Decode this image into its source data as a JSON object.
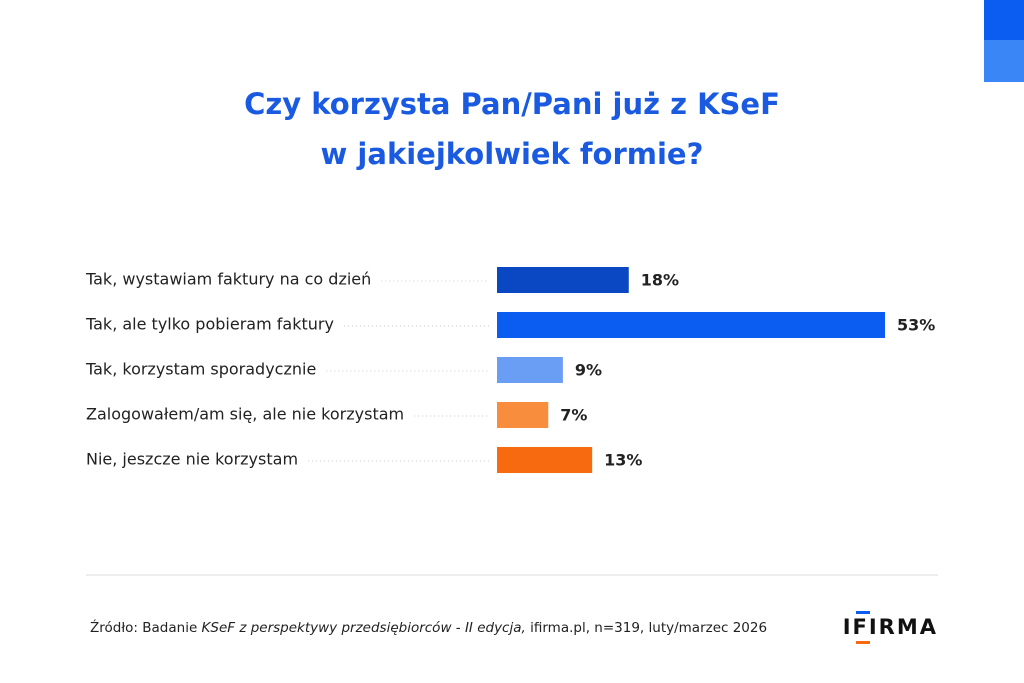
{
  "chart_data": {
    "type": "bar",
    "orientation": "horizontal",
    "title": [
      "Czy korzysta Pan/Pani już z KSeF",
      "w jakiejkolwiek formie?"
    ],
    "categories": [
      "Tak, wystawiam faktury na co dzień",
      "Tak, ale tylko pobieram faktury",
      "Tak, korzystam sporadycznie",
      "Zalogowałem/am się, ale nie korzystam",
      "Nie, jeszcze nie korzystam"
    ],
    "values": [
      18,
      53,
      9,
      7,
      13
    ],
    "value_labels": [
      "18%",
      "53%",
      "9%",
      "7%",
      "13%"
    ],
    "colors": [
      "#0a47c2",
      "#0b5cf0",
      "#6a9ef5",
      "#f98d3e",
      "#f86a0f"
    ]
  },
  "footer": {
    "source_prefix": "Źródło: Badanie ",
    "source_italic": "KSeF z perspektywy przedsiębiorców - II edycja,",
    "source_suffix": " ifirma.pl, n=319, luty/marzec 2026",
    "logo": "IFIRMA"
  }
}
